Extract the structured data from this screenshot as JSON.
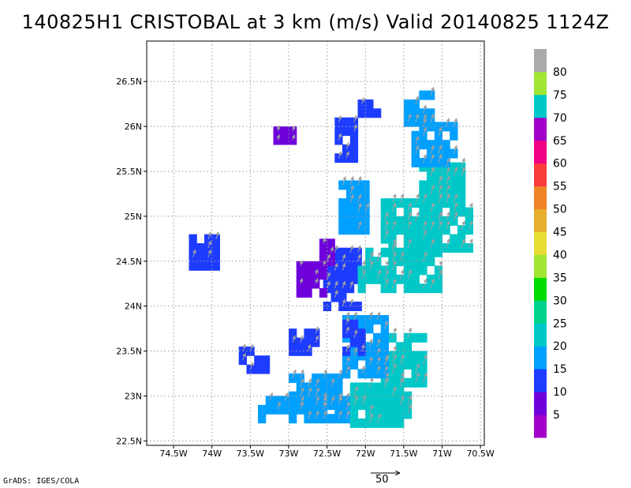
{
  "title": "140825H1 CRISTOBAL at 3 km (m/s) Valid 20140825 1124Z",
  "credit": "GrADS: IGES/COLA",
  "reference_vector": "50",
  "chart_data": {
    "type": "heatmap",
    "xlim": [
      -74.85,
      -70.45
    ],
    "ylim": [
      22.45,
      26.95
    ],
    "x_ticks": [
      -74.5,
      -74,
      -73.5,
      -73,
      -72.5,
      -72,
      -71.5,
      -71,
      -70.5
    ],
    "x_tick_labels": [
      "74.5W",
      "74W",
      "73.5W",
      "73W",
      "72.5W",
      "72W",
      "71.5W",
      "71W",
      "70.5W"
    ],
    "y_ticks": [
      22.5,
      23,
      23.5,
      24,
      24.5,
      25,
      25.5,
      26,
      26.5
    ],
    "y_tick_labels": [
      "22.5N",
      "23N",
      "23.5N",
      "24N",
      "24.5N",
      "25N",
      "25.5N",
      "26N",
      "26.5N"
    ],
    "grid": true,
    "grid_style": "dotted",
    "colorbar": {
      "levels": [
        "5",
        "10",
        "15",
        "20",
        "25",
        "30",
        "35",
        "40",
        "45",
        "50",
        "55",
        "60",
        "65",
        "70",
        "75",
        "80"
      ],
      "colors": [
        "#a000c8",
        "#6e00dc",
        "#1e3cff",
        "#00a0ff",
        "#00c8c8",
        "#00d28c",
        "#00dc00",
        "#a0e632",
        "#e6dc32",
        "#e6af2d",
        "#f08228",
        "#fa3c3c",
        "#f00082",
        "#a000c8",
        "#00c8c8",
        "#a0e632",
        "#aaaaaa"
      ]
    },
    "wind_regions": [
      {
        "speed_ms": 12,
        "lon": [
          -72.55,
          -72.1
        ],
        "lat": [
          23.95,
          24.65
        ]
      },
      {
        "speed_ms": 5,
        "lon": [
          -72.9,
          -72.55
        ],
        "lat": [
          24.1,
          24.45
        ]
      },
      {
        "speed_ms": 5,
        "lon": [
          -72.6,
          -72.4
        ],
        "lat": [
          24.45,
          24.75
        ]
      },
      {
        "speed_ms": 22,
        "lon": [
          -72.1,
          -71.0
        ],
        "lat": [
          24.15,
          24.65
        ]
      },
      {
        "speed_ms": 20,
        "lon": [
          -71.8,
          -70.6
        ],
        "lat": [
          24.6,
          25.15
        ]
      },
      {
        "speed_ms": 20,
        "lon": [
          -71.3,
          -70.75
        ],
        "lat": [
          25.1,
          25.55
        ]
      },
      {
        "speed_ms": 17,
        "lon": [
          -71.4,
          -70.85
        ],
        "lat": [
          25.55,
          26.0
        ]
      },
      {
        "speed_ms": 16,
        "lon": [
          -71.5,
          -71.1
        ],
        "lat": [
          26.0,
          26.35
        ]
      },
      {
        "speed_ms": 18,
        "lon": [
          -72.35,
          -72.0
        ],
        "lat": [
          24.8,
          25.35
        ]
      },
      {
        "speed_ms": 18,
        "lon": [
          -73.0,
          -72.35
        ],
        "lat": [
          22.85,
          23.2
        ]
      },
      {
        "speed_ms": 15,
        "lon": [
          -73.4,
          -72.2
        ],
        "lat": [
          22.7,
          22.95
        ]
      },
      {
        "speed_ms": 22,
        "lon": [
          -72.2,
          -71.4
        ],
        "lat": [
          22.65,
          23.1
        ]
      },
      {
        "speed_ms": 24,
        "lon": [
          -71.8,
          -71.2
        ],
        "lat": [
          23.1,
          23.65
        ]
      },
      {
        "speed_ms": 15,
        "lon": [
          -72.3,
          -71.7
        ],
        "lat": [
          23.2,
          23.85
        ]
      },
      {
        "speed_ms": 10,
        "lon": [
          -72.3,
          -72.05
        ],
        "lat": [
          23.45,
          23.85
        ]
      },
      {
        "speed_ms": 10,
        "lon": [
          -73.0,
          -72.6
        ],
        "lat": [
          23.45,
          23.75
        ]
      },
      {
        "speed_ms": 12,
        "lon": [
          -73.65,
          -73.3
        ],
        "lat": [
          23.25,
          23.55
        ]
      },
      {
        "speed_ms": 12,
        "lon": [
          -74.3,
          -73.95
        ],
        "lat": [
          24.4,
          24.8
        ]
      },
      {
        "speed_ms": 5,
        "lon": [
          -73.2,
          -72.95
        ],
        "lat": [
          25.8,
          26.0
        ]
      },
      {
        "speed_ms": 10,
        "lon": [
          -72.4,
          -72.1
        ],
        "lat": [
          25.6,
          26.05
        ]
      },
      {
        "speed_ms": 10,
        "lon": [
          -72.1,
          -71.8
        ],
        "lat": [
          26.1,
          26.3
        ]
      }
    ]
  }
}
